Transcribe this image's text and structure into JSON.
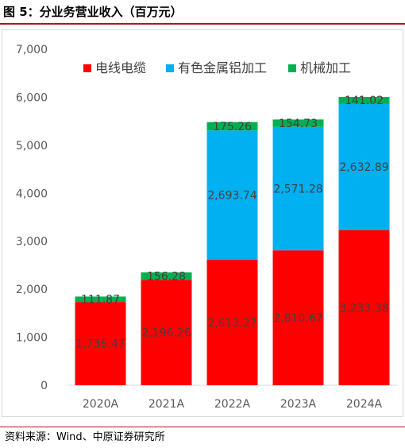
{
  "header": {
    "title": "图 5：分业务营业收入（百万元）"
  },
  "footer": {
    "source": "资料来源：Wind、中原证券研究所"
  },
  "chart_data": {
    "type": "bar",
    "stacked": true,
    "title": "",
    "xlabel": "",
    "ylabel": "",
    "categories": [
      "2020A",
      "2021A",
      "2022A",
      "2023A",
      "2024A"
    ],
    "ylim": [
      0,
      7000
    ],
    "yticks": [
      0,
      1000,
      2000,
      3000,
      4000,
      5000,
      6000,
      7000
    ],
    "ytick_labels": [
      "0",
      "1,000",
      "2,000",
      "3,000",
      "4,000",
      "5,000",
      "6,000",
      "7,000"
    ],
    "grid": false,
    "legend": "top-center",
    "series": [
      {
        "name": "电线电缆",
        "color": "#ff0000",
        "values": [
          1735.47,
          2196.26,
          2613.27,
          2810.67,
          3233.38
        ],
        "labels": [
          "1,735.47",
          "2,196.26",
          "2,613.27",
          "2,810.67",
          "3,233.38"
        ]
      },
      {
        "name": "有色金属铝加工",
        "color": "#00b0f0",
        "values": [
          0,
          0,
          2693.74,
          2571.28,
          2632.89
        ],
        "labels": [
          "",
          "",
          "2,693.74",
          "2,571.28",
          "2,632.89"
        ]
      },
      {
        "name": "机械加工",
        "color": "#00b050",
        "values": [
          111.87,
          156.28,
          175.26,
          154.73,
          141.02
        ],
        "labels": [
          "111.87",
          "156.28",
          "175.26",
          "154.73",
          "141.02"
        ]
      }
    ]
  }
}
